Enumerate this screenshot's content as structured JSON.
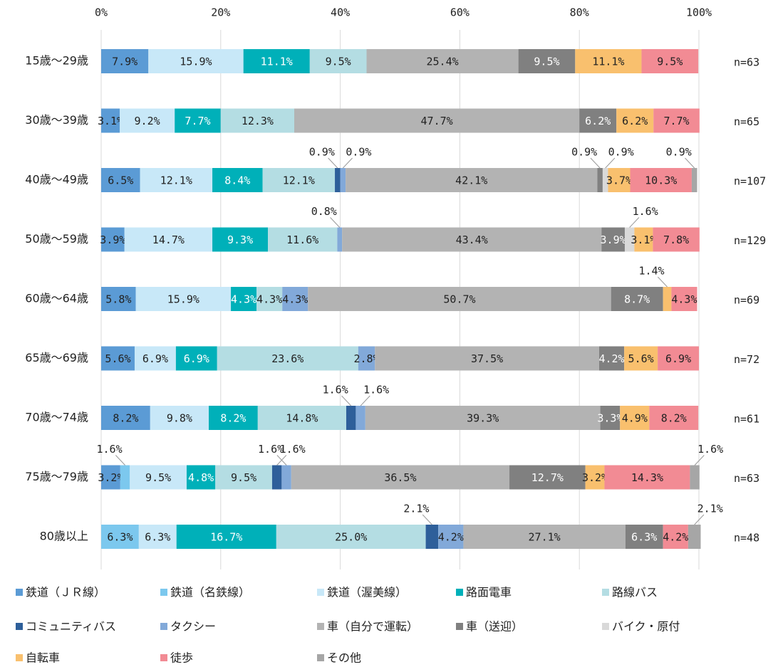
{
  "chart_data": {
    "type": "stacked_bar_horizontal",
    "categories": [
      "15歳～29歳",
      "30歳～39歳",
      "40歳～49歳",
      "50歳～59歳",
      "60歳～64歳",
      "65歳～69歳",
      "70歳～74歳",
      "75歳～79歳",
      "80歳以上"
    ],
    "n_labels": [
      "n=63",
      "n=65",
      "n=107",
      "n=129",
      "n=69",
      "n=72",
      "n=61",
      "n=63",
      "n=48"
    ],
    "xlim": [
      0,
      100
    ],
    "xticks": [
      {
        "value": 0,
        "label": "0%"
      },
      {
        "value": 20,
        "label": "20%"
      },
      {
        "value": 40,
        "label": "40%"
      },
      {
        "value": 60,
        "label": "60%"
      },
      {
        "value": 80,
        "label": "80%"
      },
      {
        "value": 100,
        "label": "100%"
      }
    ],
    "grid": true,
    "series": [
      {
        "name": "鉄道（ＪＲ線）",
        "color": "#5b9bd5",
        "values": [
          7.9,
          3.1,
          6.5,
          3.9,
          5.8,
          5.6,
          8.2,
          3.2,
          0
        ],
        "value_labels": [
          "7.9%",
          "3.1%",
          "6.5%",
          "3.9%",
          "5.8%",
          "5.6%",
          "8.2%",
          "3.2%",
          null
        ]
      },
      {
        "name": "鉄道（名鉄線）",
        "color": "#7cc8ee",
        "values": [
          0,
          0,
          0,
          0,
          0,
          0,
          0,
          1.6,
          6.3
        ],
        "value_labels": [
          null,
          null,
          null,
          null,
          null,
          null,
          null,
          "1.6%",
          "6.3%"
        ]
      },
      {
        "name": "鉄道（渥美線）",
        "color": "#c8e8f8",
        "values": [
          15.9,
          9.2,
          12.1,
          14.7,
          15.9,
          6.9,
          9.8,
          9.5,
          6.3
        ],
        "value_labels": [
          "15.9%",
          "9.2%",
          "12.1%",
          "14.7%",
          "15.9%",
          "6.9%",
          "9.8%",
          "9.5%",
          "6.3%"
        ]
      },
      {
        "name": "路面電車",
        "color": "#00b0b9",
        "values": [
          11.1,
          7.7,
          8.4,
          9.3,
          4.3,
          6.9,
          8.2,
          4.8,
          16.7
        ],
        "value_labels": [
          "11.1%",
          "7.7%",
          "8.4%",
          "9.3%",
          "4.3%",
          "6.9%",
          "8.2%",
          "4.8%",
          "16.7%"
        ]
      },
      {
        "name": "路線バス",
        "color": "#b4dde3",
        "values": [
          9.5,
          12.3,
          12.1,
          11.6,
          4.3,
          23.6,
          14.8,
          9.5,
          25.0
        ],
        "value_labels": [
          "9.5%",
          "12.3%",
          "12.1%",
          "11.6%",
          "4.3%",
          "23.6%",
          "14.8%",
          "9.5%",
          "25.0%"
        ]
      },
      {
        "name": "コミュニティバス",
        "color": "#2e5f9a",
        "values": [
          0,
          0,
          0.9,
          0,
          0,
          0,
          1.6,
          1.6,
          2.1
        ],
        "value_labels": [
          null,
          null,
          "0.9%",
          null,
          null,
          null,
          "1.6%",
          "1.6%",
          "2.1%"
        ]
      },
      {
        "name": "タクシー",
        "color": "#82a9d9",
        "values": [
          0,
          0,
          0.9,
          0.8,
          4.3,
          2.8,
          1.6,
          1.6,
          4.2
        ],
        "value_labels": [
          null,
          null,
          "0.9%",
          "0.8%",
          "4.3%",
          "2.8%",
          "1.6%",
          "1.6%",
          "4.2%"
        ]
      },
      {
        "name": "車（自分で運転）",
        "color": "#b3b3b3",
        "values": [
          25.4,
          47.7,
          42.1,
          43.4,
          50.7,
          37.5,
          39.3,
          36.5,
          27.1
        ],
        "value_labels": [
          "25.4%",
          "47.7%",
          "42.1%",
          "43.4%",
          "50.7%",
          "37.5%",
          "39.3%",
          "36.5%",
          "27.1%"
        ]
      },
      {
        "name": "車（送迎）",
        "color": "#808080",
        "values": [
          9.5,
          6.2,
          0.9,
          3.9,
          8.7,
          4.2,
          3.3,
          12.7,
          6.3
        ],
        "value_labels": [
          "9.5%",
          "6.2%",
          "0.9%",
          "3.9%",
          "8.7%",
          "4.2%",
          "3.3%",
          "12.7%",
          "6.3%"
        ]
      },
      {
        "name": "バイク・原付",
        "color": "#d9d9d9",
        "values": [
          0,
          0,
          0.9,
          1.6,
          0,
          0,
          0,
          0,
          0
        ],
        "value_labels": [
          null,
          null,
          "0.9%",
          "1.6%",
          null,
          null,
          null,
          null,
          null
        ]
      },
      {
        "name": "自転車",
        "color": "#f9c06e",
        "values": [
          11.1,
          6.2,
          3.7,
          3.1,
          1.4,
          5.6,
          4.9,
          3.2,
          0
        ],
        "value_labels": [
          "11.1%",
          "6.2%",
          "3.7%",
          "3.1%",
          "1.4%",
          "5.6%",
          "4.9%",
          "3.2%",
          null
        ]
      },
      {
        "name": "徒歩",
        "color": "#f28b94",
        "values": [
          9.5,
          7.7,
          10.3,
          7.8,
          4.3,
          6.9,
          8.2,
          14.3,
          4.2
        ],
        "value_labels": [
          "9.5%",
          "7.7%",
          "10.3%",
          "7.8%",
          "4.3%",
          "6.9%",
          "8.2%",
          "14.3%",
          "4.2%"
        ]
      },
      {
        "name": "その他",
        "color": "#a6a6a6",
        "values": [
          0,
          0,
          0.9,
          0,
          0,
          0,
          0,
          1.6,
          2.1
        ],
        "value_labels": [
          null,
          null,
          "0.9%",
          null,
          null,
          null,
          null,
          "1.6%",
          "2.1%"
        ]
      }
    ]
  }
}
